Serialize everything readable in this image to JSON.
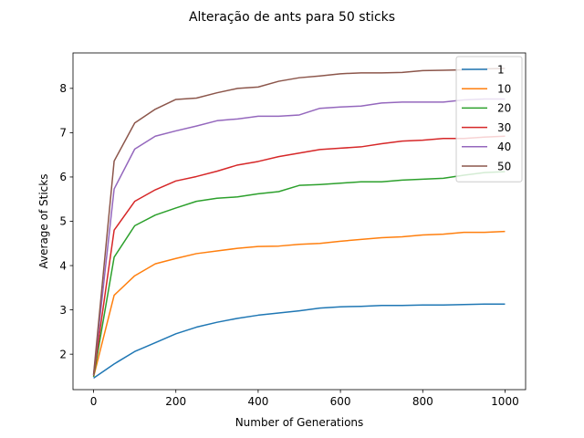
{
  "chart_data": {
    "type": "line",
    "title": "Alteração de ants para 50 sticks",
    "xlabel": "Number of Generations",
    "ylabel": "Average of Sticks",
    "xlim": [
      -50,
      1050
    ],
    "ylim": [
      1.2,
      8.8
    ],
    "xticks": [
      0,
      200,
      400,
      600,
      800,
      1000
    ],
    "yticks": [
      2,
      3,
      4,
      5,
      6,
      7,
      8
    ],
    "grid": false,
    "legend_position": "top-right",
    "x": [
      0,
      50,
      100,
      150,
      200,
      250,
      300,
      350,
      400,
      450,
      500,
      550,
      600,
      650,
      700,
      750,
      800,
      850,
      900,
      950,
      1000
    ],
    "series": [
      {
        "name": "1",
        "color": "#1f77b4",
        "values": [
          1.46,
          1.78,
          2.06,
          2.26,
          2.46,
          2.61,
          2.72,
          2.81,
          2.88,
          2.93,
          2.98,
          3.04,
          3.07,
          3.08,
          3.1,
          3.1,
          3.11,
          3.11,
          3.12,
          3.13,
          3.13
        ]
      },
      {
        "name": "10",
        "color": "#ff7f0e",
        "values": [
          1.49,
          3.33,
          3.77,
          4.04,
          4.16,
          4.27,
          4.33,
          4.39,
          4.43,
          4.44,
          4.48,
          4.5,
          4.55,
          4.59,
          4.63,
          4.65,
          4.69,
          4.71,
          4.75,
          4.75,
          4.77
        ]
      },
      {
        "name": "20",
        "color": "#2ca02c",
        "values": [
          1.49,
          4.19,
          4.9,
          5.14,
          5.3,
          5.45,
          5.52,
          5.55,
          5.62,
          5.67,
          5.81,
          5.83,
          5.86,
          5.89,
          5.89,
          5.93,
          5.95,
          5.97,
          6.04,
          6.1,
          6.12
        ]
      },
      {
        "name": "30",
        "color": "#d62728",
        "values": [
          1.52,
          4.8,
          5.45,
          5.71,
          5.91,
          6.01,
          6.13,
          6.27,
          6.35,
          6.46,
          6.54,
          6.62,
          6.65,
          6.68,
          6.75,
          6.81,
          6.83,
          6.87,
          6.87,
          6.9,
          6.92
        ]
      },
      {
        "name": "40",
        "color": "#9467bd",
        "values": [
          1.53,
          5.73,
          6.63,
          6.92,
          7.04,
          7.15,
          7.27,
          7.31,
          7.37,
          7.37,
          7.4,
          7.55,
          7.58,
          7.6,
          7.67,
          7.69,
          7.69,
          7.69,
          7.74,
          7.76,
          7.76
        ]
      },
      {
        "name": "50",
        "color": "#8c564b",
        "values": [
          1.54,
          6.36,
          7.22,
          7.53,
          7.75,
          7.78,
          7.9,
          8.0,
          8.03,
          8.16,
          8.24,
          8.28,
          8.33,
          8.35,
          8.35,
          8.36,
          8.4,
          8.41,
          8.42,
          8.44,
          8.45
        ]
      }
    ]
  }
}
